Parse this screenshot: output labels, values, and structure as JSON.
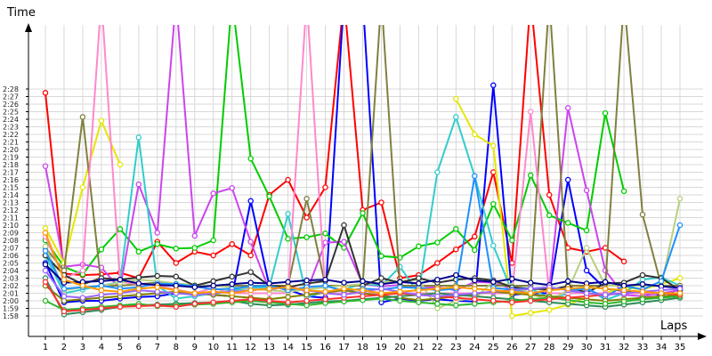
{
  "chart_data": {
    "type": "line",
    "xlabel": "Laps",
    "ylabel": "Time",
    "x": [
      1,
      2,
      3,
      4,
      5,
      6,
      7,
      8,
      9,
      10,
      11,
      12,
      13,
      14,
      15,
      16,
      17,
      18,
      19,
      20,
      21,
      22,
      23,
      24,
      25,
      26,
      27,
      28,
      29,
      30,
      31,
      32,
      33,
      34,
      35
    ],
    "x_tick_labels": [
      "1",
      "2",
      "3",
      "4",
      "5",
      "6",
      "7",
      "8",
      "9",
      "10",
      "11",
      "12",
      "13",
      "14",
      "15",
      "16",
      "17",
      "18",
      "19",
      "20",
      "21",
      "22",
      "23",
      "24",
      "25",
      "26",
      "27",
      "28",
      "29",
      "30",
      "31",
      "32",
      "33",
      "34",
      "35"
    ],
    "y_tick_labels": [
      "1:58",
      "1:59",
      "2:00",
      "2:01",
      "2:02",
      "2:03",
      "2:04",
      "2:05",
      "2:06",
      "2:07",
      "2:08",
      "2:09",
      "2:10",
      "2:11",
      "2:12",
      "2:13",
      "2:14",
      "2:15",
      "2:16",
      "2:17",
      "2:18",
      "2:19",
      "2:20",
      "2:21",
      "2:22",
      "2:23",
      "2:24",
      "2:25",
      "2:26",
      "2:27",
      "2:28"
    ],
    "ylim": [
      117.0,
      149.0
    ],
    "grid": true,
    "legend": "none",
    "series": [
      {
        "color": "#ff0000",
        "values": [
          147.5,
          123.6,
          123.4,
          123.5,
          123.7,
          123.0,
          127.8,
          125.0,
          126.5,
          126.0,
          127.5,
          126.0,
          134.0,
          136.0,
          131.0,
          135.0,
          160.0,
          132.0,
          133.0,
          123.0,
          123.4,
          125.0,
          126.8,
          128.5,
          137.0,
          125.0,
          160.0,
          134.0,
          127.0,
          126.5,
          127.0,
          125.2,
          null,
          null,
          null
        ]
      },
      {
        "color": "#0000ff",
        "values": [
          125.0,
          119.8,
          120.0,
          120.0,
          120.3,
          120.5,
          120.6,
          121.0,
          121.0,
          120.8,
          120.6,
          133.2,
          122.0,
          121.5,
          120.6,
          120.4,
          160.0,
          160.0,
          119.8,
          120.3,
          120.0,
          120.2,
          120.0,
          119.9,
          148.5,
          120.8,
          121.0,
          121.0,
          136.0,
          124.0,
          121.6,
          121.3,
          121.0,
          120.8,
          121.5
        ]
      },
      {
        "color": "#00cc00",
        "values": [
          128.0,
          124.5,
          123.5,
          126.8,
          129.5,
          126.5,
          127.5,
          126.9,
          127.0,
          128.0,
          160.0,
          138.8,
          133.8,
          128.2,
          128.4,
          128.9,
          127.0,
          131.6,
          125.9,
          125.7,
          127.2,
          127.7,
          129.5,
          126.7,
          132.8,
          128.0,
          136.6,
          131.3,
          130.3,
          129.3,
          144.8,
          134.5,
          null,
          null,
          null
        ]
      },
      {
        "color": "#cc44ee",
        "values": [
          137.8,
          124.5,
          124.8,
          124.4,
          121.6,
          135.4,
          129.0,
          160.0,
          128.6,
          134.2,
          134.9,
          127.8,
          121.4,
          122.0,
          121.2,
          127.7,
          127.8,
          122.2,
          121.9,
          122.1,
          121.7,
          121.8,
          121.4,
          122.5,
          122.4,
          121.6,
          121.0,
          121.4,
          145.5,
          134.6,
          124.0,
          120.8,
          120.6,
          121.0,
          121.4
        ]
      },
      {
        "color": "#e6e600",
        "values": [
          129.6,
          125.0,
          135.0,
          143.8,
          138.0,
          null,
          null,
          null,
          null,
          null,
          null,
          null,
          null,
          null,
          null,
          null,
          null,
          null,
          null,
          null,
          null,
          null,
          146.7,
          142.0,
          140.5,
          118.0,
          118.4,
          118.8,
          119.5,
          120.5,
          121.0,
          121.8,
          121.5,
          122.2,
          123.0
        ]
      },
      {
        "color": "#33cccc",
        "values": [
          126.0,
          121.0,
          121.5,
          122.0,
          122.5,
          141.6,
          122.0,
          120.3,
          120.6,
          121.0,
          121.4,
          121.7,
          121.8,
          131.5,
          120.5,
          121.2,
          121.5,
          122.3,
          122.0,
          124.5,
          121.0,
          137.0,
          144.3,
          136.5,
          127.3,
          121.2,
          121.6,
          120.4,
          120.9,
          121.8,
          120.1,
          121.0,
          122.8,
          123.1,
          122.0
        ]
      },
      {
        "color": "#808040",
        "values": [
          127.0,
          124.0,
          144.3,
          122.0,
          122.0,
          122.2,
          122.4,
          122.0,
          122.0,
          122.0,
          122.0,
          122.0,
          122.0,
          122.0,
          133.5,
          122.0,
          122.0,
          122.0,
          160.0,
          122.0,
          122.0,
          122.0,
          122.0,
          122.0,
          122.0,
          122.0,
          122.0,
          160.0,
          122.0,
          122.0,
          122.0,
          160.0,
          131.4,
          122.0,
          122.0
        ]
      },
      {
        "color": "#ff88cc",
        "values": [
          128.5,
          123.0,
          124.0,
          160.0,
          122.5,
          122.2,
          122.0,
          121.5,
          121.0,
          121.7,
          121.0,
          121.0,
          121.0,
          121.0,
          160.0,
          121.0,
          121.0,
          121.0,
          121.0,
          121.0,
          121.0,
          121.0,
          121.0,
          121.0,
          121.0,
          121.0,
          145.0,
          121.0,
          121.0,
          121.0,
          121.0,
          121.0,
          121.0,
          121.0,
          121.0
        ]
      },
      {
        "color": "#b8d080",
        "values": [
          127.2,
          121.4,
          121.8,
          122.0,
          122.4,
          122.8,
          122.6,
          122.3,
          122.1,
          122.0,
          121.8,
          121.6,
          121.4,
          121.2,
          121.5,
          121.8,
          122.0,
          122.2,
          122.4,
          122.6,
          122.8,
          119.0,
          120.0,
          120.4,
          122.5,
          122.0,
          121.0,
          120.0,
          121.4,
          127.0,
          122.0,
          122.0,
          122.0,
          122.0,
          133.5
        ]
      },
      {
        "color": "#333333",
        "values": [
          126.0,
          123.4,
          122.2,
          123.0,
          122.8,
          123.1,
          123.3,
          123.2,
          122.0,
          122.6,
          123.2,
          123.8,
          122.0,
          121.8,
          122.3,
          122.6,
          130.0,
          122.0,
          123.0,
          122.4,
          123.0,
          122.4,
          122.8,
          123.0,
          122.7,
          121.8,
          121.6,
          121.5,
          121.9,
          121.1,
          122.3,
          122.4,
          123.4,
          123.0,
          121.4
        ]
      },
      {
        "color": "#1e90ff",
        "values": [
          126.6,
          121.6,
          121.8,
          122.0,
          121.6,
          121.8,
          122.3,
          122.2,
          121.9,
          121.5,
          121.6,
          121.9,
          122.0,
          121.4,
          121.8,
          122.0,
          121.3,
          121.6,
          121.5,
          121.8,
          121.7,
          121.4,
          121.6,
          136.5,
          121.7,
          121.5,
          121.6,
          121.8,
          121.4,
          121.6,
          120.5,
          122.0,
          121.5,
          122.6,
          130.0
        ]
      },
      {
        "color": "#00008b",
        "values": [
          124.8,
          122.4,
          122.5,
          122.6,
          122.8,
          122.3,
          122.1,
          122.0,
          121.8,
          122.0,
          122.2,
          122.4,
          122.3,
          122.5,
          122.7,
          122.8,
          122.4,
          122.6,
          122.2,
          122.5,
          122.3,
          122.8,
          123.4,
          122.7,
          122.5,
          122.9,
          122.4,
          122.1,
          122.6,
          122.3,
          122.5,
          122.0,
          122.2,
          121.9,
          121.7
        ]
      },
      {
        "color": "#808000",
        "values": [
          122.0,
          120.0,
          120.2,
          120.4,
          120.6,
          120.8,
          121.0,
          121.2,
          121.0,
          120.8,
          120.6,
          120.4,
          120.2,
          120.5,
          120.8,
          121.1,
          121.4,
          121.0,
          120.7,
          120.4,
          120.1,
          120.3,
          120.6,
          120.9,
          121.2,
          121.0,
          120.8,
          120.6,
          120.4,
          120.2,
          120.0,
          120.2,
          120.4,
          120.6,
          120.8
        ]
      },
      {
        "color": "#2e8b57",
        "values": [
          123.0,
          118.2,
          118.5,
          118.8,
          119.2,
          119.4,
          119.5,
          119.6,
          119.7,
          119.8,
          120.0,
          119.6,
          119.4,
          119.5,
          119.7,
          119.9,
          120.0,
          120.2,
          120.4,
          120.6,
          120.8,
          121.0,
          120.8,
          120.6,
          120.4,
          120.2,
          120.0,
          119.8,
          119.6,
          119.4,
          119.2,
          119.5,
          119.8,
          120.1,
          120.4
        ]
      },
      {
        "color": "#2fb82f",
        "values": [
          120.0,
          118.8,
          119.0,
          119.2,
          119.4,
          119.6,
          119.3,
          119.4,
          119.5,
          119.6,
          119.8,
          120.0,
          119.8,
          119.6,
          119.4,
          119.7,
          119.9,
          120.1,
          120.3,
          120.0,
          119.8,
          119.6,
          119.4,
          119.6,
          119.8,
          120.0,
          120.2,
          120.4,
          120.1,
          119.8,
          119.6,
          119.9,
          120.2,
          120.4,
          120.6
        ]
      },
      {
        "color": "#ff3030",
        "values": [
          122.5,
          118.6,
          118.8,
          119.0,
          119.2,
          119.3,
          119.4,
          119.2,
          119.6,
          119.8,
          120.0,
          120.2,
          120.0,
          119.8,
          120.0,
          120.2,
          120.4,
          120.6,
          120.8,
          121.0,
          120.8,
          120.6,
          120.4,
          120.2,
          120.0,
          119.8,
          120.0,
          120.2,
          120.4,
          120.6,
          120.8,
          121.0,
          121.2,
          121.0,
          120.8
        ]
      },
      {
        "color": "#9966ff",
        "values": [
          124.0,
          120.6,
          120.4,
          120.8,
          121.0,
          121.4,
          121.2,
          121.0,
          120.8,
          121.0,
          121.2,
          121.4,
          121.6,
          121.8,
          121.4,
          121.0,
          120.8,
          121.2,
          121.6,
          121.2,
          120.8,
          120.6,
          120.8,
          121.0,
          121.2,
          121.4,
          121.6,
          121.8,
          121.4,
          121.0,
          120.8,
          121.0,
          121.2,
          121.4,
          121.6
        ]
      },
      {
        "color": "#ff9900",
        "values": [
          129.0,
          122.8,
          122.0,
          121.4,
          121.2,
          121.6,
          121.8,
          121.4,
          121.0,
          121.2,
          121.0,
          121.4,
          121.6,
          121.8,
          121.4,
          121.2,
          121.6,
          121.4,
          121.0,
          121.2,
          121.4,
          121.6,
          121.8,
          121.6,
          121.4,
          121.2,
          121.0,
          121.4,
          121.6,
          121.8,
          121.6,
          121.4,
          121.2,
          121.0,
          121.0
        ]
      }
    ]
  }
}
